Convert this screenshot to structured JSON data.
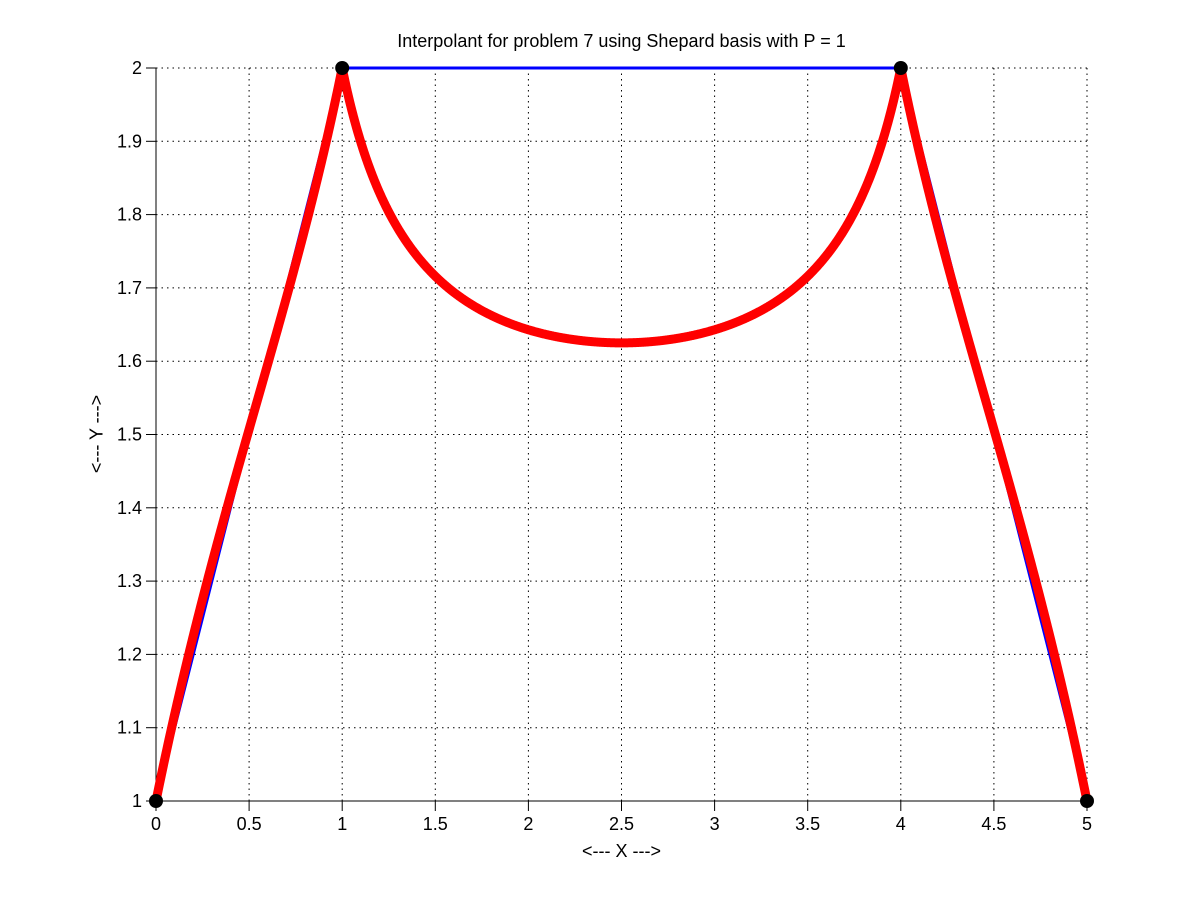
{
  "figure": {
    "background": "#ffffff"
  },
  "chart_data": {
    "type": "line",
    "title": "Interpolant for problem 7 using Shepard basis with P = 1",
    "xlabel": "<--- X --->",
    "ylabel": "<--- Y --->",
    "xlim": [
      0,
      5
    ],
    "ylim": [
      1,
      2
    ],
    "xticks": [
      0,
      0.5,
      1,
      1.5,
      2,
      2.5,
      3,
      3.5,
      4,
      4.5,
      5
    ],
    "xtick_labels": [
      "0",
      "0.5",
      "1",
      "1.5",
      "2",
      "2.5",
      "3",
      "3.5",
      "4",
      "4.5",
      "5"
    ],
    "yticks": [
      1,
      1.1,
      1.2,
      1.3,
      1.4,
      1.5,
      1.6,
      1.7,
      1.8,
      1.9,
      2
    ],
    "ytick_labels": [
      "1",
      "1.1",
      "1.2",
      "1.3",
      "1.4",
      "1.5",
      "1.6",
      "1.7",
      "1.8",
      "1.9",
      "2"
    ],
    "grid": {
      "on": true,
      "style": "dotted",
      "color": "#000000"
    },
    "axis_color": "#000000",
    "legend": "none",
    "data_points": {
      "x": [
        0,
        1,
        4,
        5
      ],
      "y": [
        1,
        2,
        2,
        1
      ]
    },
    "series": [
      {
        "name": "piecewise-linear-interpolant",
        "render": "polyline-through-data-points",
        "color": "#0000ff",
        "line_width": 3
      },
      {
        "name": "shepard-interpolant",
        "render": "shepard",
        "p": 1,
        "color": "#ff0000",
        "line_width": 9,
        "min_point": {
          "x": 2.5,
          "y": 1.625
        },
        "peak_points": [
          {
            "x": 1,
            "y": 2
          },
          {
            "x": 4,
            "y": 2
          }
        ]
      },
      {
        "name": "data-point-markers",
        "render": "markers",
        "color": "#000000",
        "marker": "filled-circle",
        "radius": 7
      }
    ]
  }
}
